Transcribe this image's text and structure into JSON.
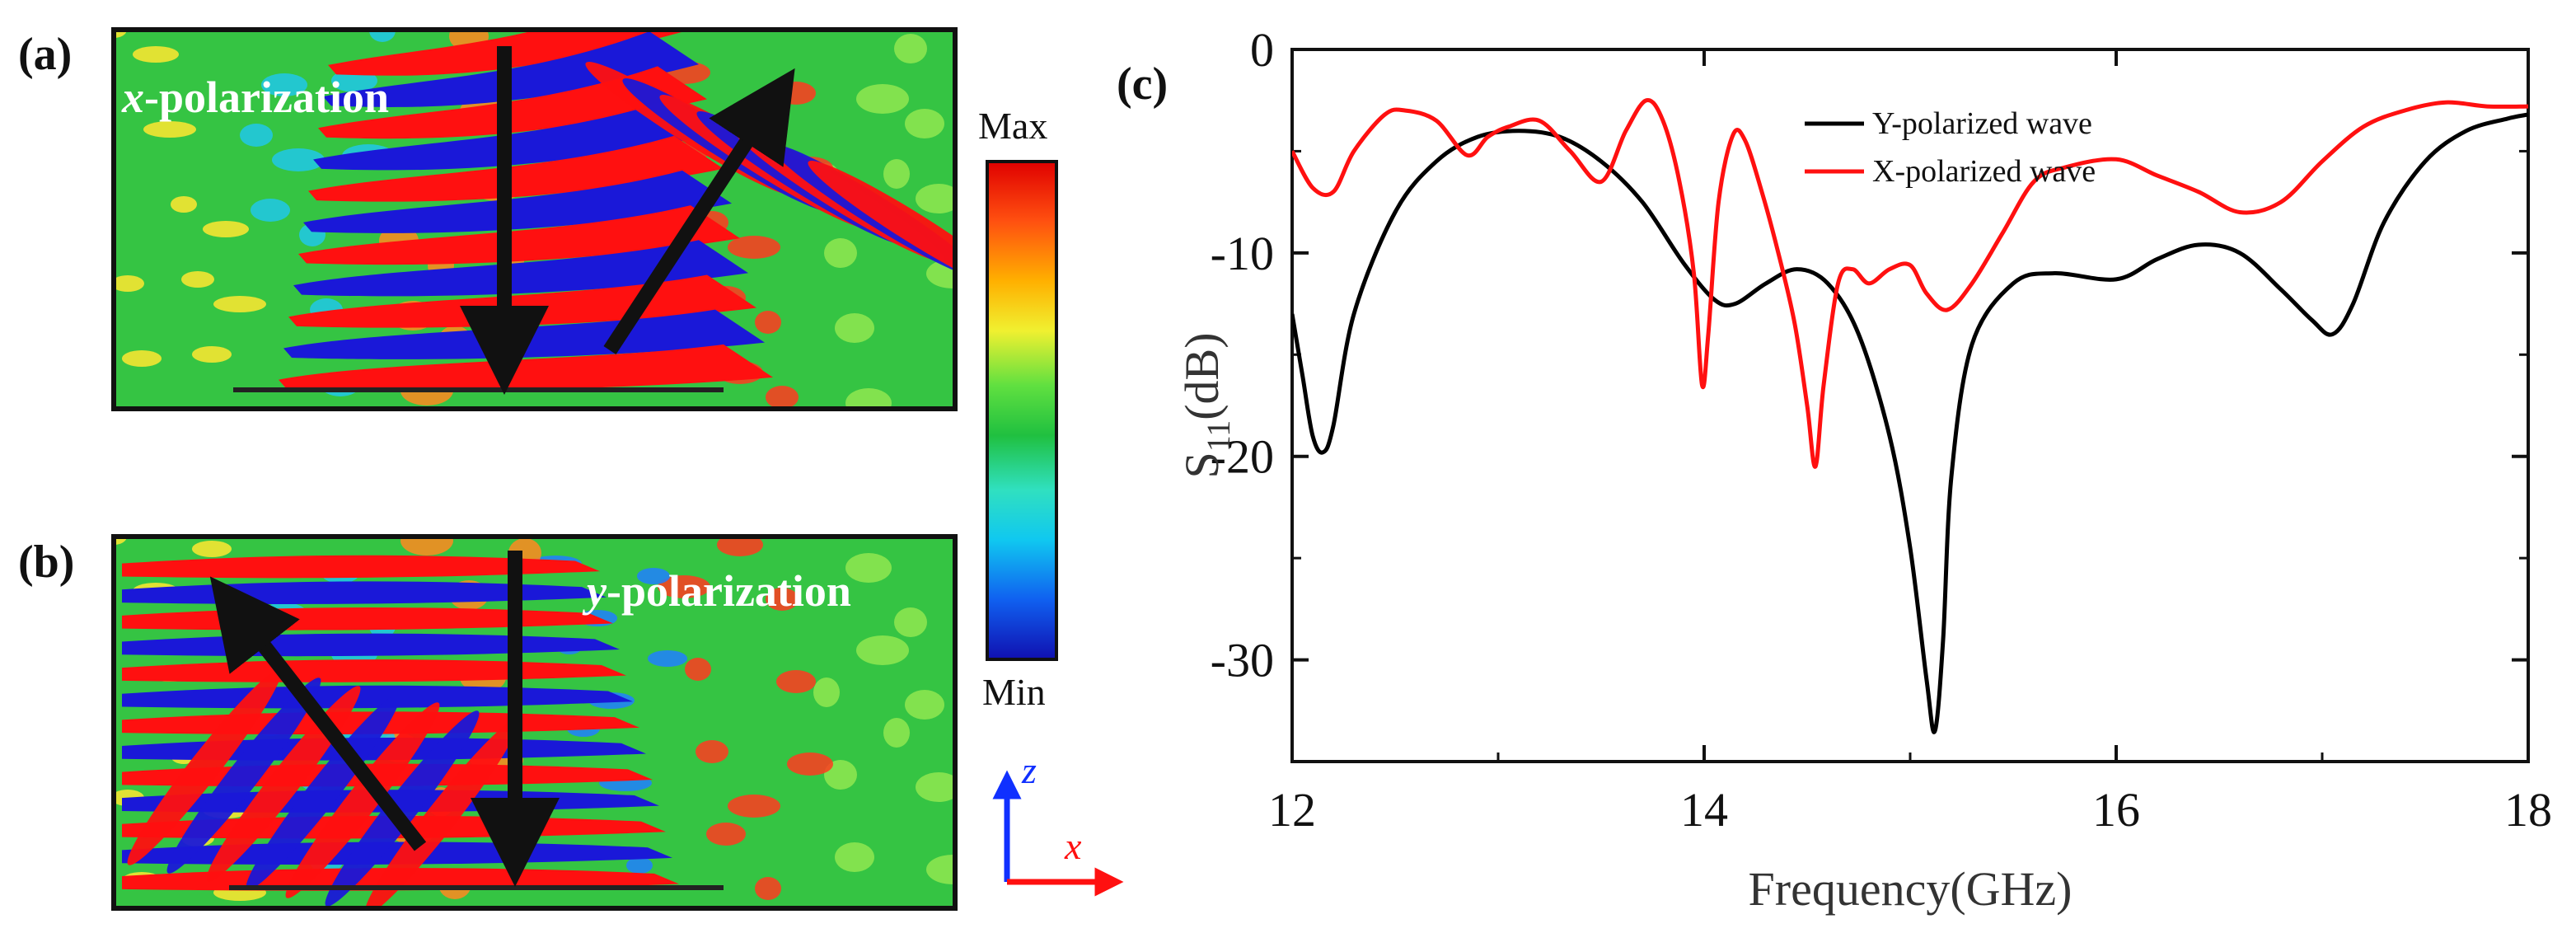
{
  "panels": {
    "a": {
      "label": "(a)",
      "title_prefix": "x",
      "title_suffix": "-polarization"
    },
    "b": {
      "label": "(b)",
      "title_prefix": "y",
      "title_suffix": "-polarization"
    },
    "c": {
      "label": "(c)"
    }
  },
  "colorbar": {
    "max_label": "Max",
    "min_label": "Min"
  },
  "axes_glyph": {
    "z": "z",
    "x": "x"
  },
  "colors": {
    "field_red": "#ff1010",
    "field_blue": "#1a18d8",
    "field_green": "#35c443",
    "series_y": "#000000",
    "series_x": "#ff1010",
    "arrow": "#111111"
  },
  "chart_data": {
    "type": "line",
    "xlabel": "Frequency(GHz)",
    "ylabel_main": "S",
    "ylabel_sub": "11",
    "ylabel_unit": "(dB)",
    "xlim": [
      12,
      18
    ],
    "ylim": [
      -35,
      0
    ],
    "xticks": [
      12,
      14,
      16,
      18
    ],
    "yticks": [
      0,
      -10,
      -20,
      -30
    ],
    "legend_position": "top",
    "series": [
      {
        "name": "Y-polarized wave",
        "color": "#000000",
        "x": [
          12.0,
          12.05,
          12.1,
          12.15,
          12.2,
          12.3,
          12.5,
          12.7,
          12.9,
          13.1,
          13.3,
          13.5,
          13.7,
          13.9,
          14.05,
          14.15,
          14.3,
          14.45,
          14.6,
          14.75,
          14.9,
          15.0,
          15.08,
          15.12,
          15.16,
          15.2,
          15.3,
          15.5,
          15.7,
          16.0,
          16.2,
          16.4,
          16.6,
          16.8,
          16.95,
          17.05,
          17.15,
          17.3,
          17.5,
          17.7,
          17.9,
          18.0
        ],
        "y": [
          -13.0,
          -16.0,
          -19.0,
          -19.8,
          -18.5,
          -13.0,
          -8.0,
          -5.5,
          -4.3,
          -4.0,
          -4.3,
          -5.5,
          -7.5,
          -10.5,
          -12.3,
          -12.5,
          -11.5,
          -10.8,
          -11.5,
          -14.0,
          -19.0,
          -24.5,
          -31.0,
          -33.5,
          -29.0,
          -21.0,
          -14.5,
          -11.5,
          -11.0,
          -11.3,
          -10.3,
          -9.6,
          -10.0,
          -11.8,
          -13.3,
          -14.0,
          -12.5,
          -8.5,
          -5.5,
          -4.0,
          -3.4,
          -3.2
        ]
      },
      {
        "name": "X-polarized wave",
        "color": "#ff1010",
        "x": [
          12.0,
          12.1,
          12.2,
          12.3,
          12.45,
          12.55,
          12.7,
          12.85,
          12.95,
          13.05,
          13.2,
          13.35,
          13.5,
          13.62,
          13.72,
          13.8,
          13.88,
          13.95,
          13.99,
          14.02,
          14.07,
          14.14,
          14.2,
          14.28,
          14.36,
          14.44,
          14.5,
          14.54,
          14.58,
          14.65,
          14.72,
          14.8,
          14.9,
          15.0,
          15.08,
          15.18,
          15.3,
          15.45,
          15.6,
          15.75,
          16.0,
          16.2,
          16.4,
          16.6,
          16.8,
          17.0,
          17.2,
          17.4,
          17.6,
          17.8,
          18.0
        ],
        "y": [
          -5.0,
          -6.8,
          -7.0,
          -5.0,
          -3.2,
          -3.0,
          -3.5,
          -5.2,
          -4.3,
          -3.8,
          -3.5,
          -5.0,
          -6.5,
          -4.0,
          -2.5,
          -3.5,
          -6.5,
          -11.0,
          -16.5,
          -14.0,
          -7.5,
          -4.2,
          -4.5,
          -7.0,
          -10.0,
          -13.5,
          -17.5,
          -20.5,
          -16.5,
          -11.5,
          -10.8,
          -11.5,
          -10.8,
          -10.6,
          -12.0,
          -12.8,
          -11.5,
          -9.0,
          -6.5,
          -5.8,
          -5.4,
          -6.2,
          -7.0,
          -8.0,
          -7.5,
          -5.5,
          -3.8,
          -3.0,
          -2.6,
          -2.8,
          -2.8
        ]
      }
    ]
  }
}
